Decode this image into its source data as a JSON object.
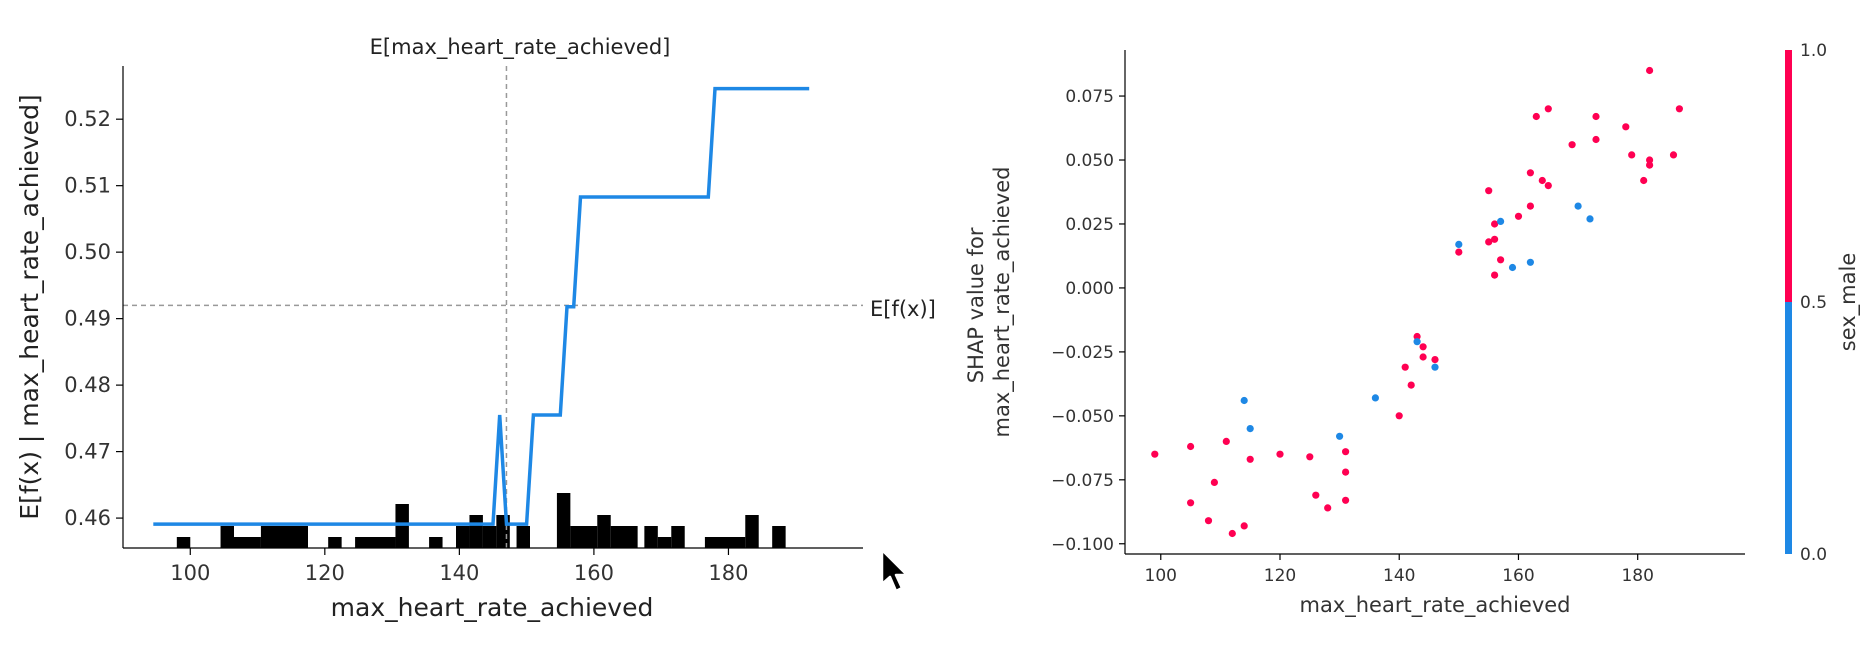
{
  "chart_data": [
    {
      "type": "line",
      "title": "E[max_heart_rate_achieved]",
      "xlabel": "max_heart_rate_achieved",
      "ylabel": "E[f(x) | max_heart_rate_achieved]",
      "xlim": [
        90,
        200
      ],
      "ylim": [
        0.4555,
        0.528
      ],
      "xticks": [
        100,
        120,
        140,
        160,
        180
      ],
      "yticks": [
        0.46,
        0.47,
        0.48,
        0.49,
        0.5,
        0.51,
        0.52
      ],
      "ytick_labels": [
        "0.46",
        "0.47",
        "0.48",
        "0.49",
        "0.50",
        "0.51",
        "0.52"
      ],
      "hline": {
        "y": 0.492,
        "label": "E[f(x)]"
      },
      "vline": {
        "x": 147
      },
      "line_color": "#1e88e5",
      "series": [
        {
          "x": [
            94.5,
            145,
            146,
            147,
            148,
            150,
            151,
            155,
            156,
            157,
            158,
            159,
            177,
            178,
            192
          ],
          "y": [
            0.4591,
            0.4591,
            0.4755,
            0.4591,
            0.4591,
            0.4591,
            0.4755,
            0.4755,
            0.4918,
            0.4918,
            0.5083,
            0.5083,
            0.5083,
            0.5246,
            0.5246
          ]
        }
      ],
      "histogram": {
        "color": "#000000",
        "bins": [
          {
            "x0": 98,
            "x1": 100,
            "count": 1
          },
          {
            "x0": 104.5,
            "x1": 106.5,
            "count": 2
          },
          {
            "x0": 106.5,
            "x1": 110.5,
            "count": 1
          },
          {
            "x0": 110.5,
            "x1": 117.5,
            "count": 2
          },
          {
            "x0": 120.5,
            "x1": 122.5,
            "count": 1
          },
          {
            "x0": 124.5,
            "x1": 130.5,
            "count": 1
          },
          {
            "x0": 130.5,
            "x1": 132.5,
            "count": 4
          },
          {
            "x0": 135.5,
            "x1": 137.5,
            "count": 1
          },
          {
            "x0": 139.5,
            "x1": 141.5,
            "count": 2
          },
          {
            "x0": 141.5,
            "x1": 143.5,
            "count": 3
          },
          {
            "x0": 143.5,
            "x1": 145.5,
            "count": 2
          },
          {
            "x0": 145.5,
            "x1": 147.5,
            "count": 3
          },
          {
            "x0": 148.5,
            "x1": 150.5,
            "count": 2
          },
          {
            "x0": 154.5,
            "x1": 156.5,
            "count": 5
          },
          {
            "x0": 156.5,
            "x1": 160.5,
            "count": 2
          },
          {
            "x0": 160.5,
            "x1": 162.5,
            "count": 3
          },
          {
            "x0": 162.5,
            "x1": 166.5,
            "count": 2
          },
          {
            "x0": 167.5,
            "x1": 169.5,
            "count": 2
          },
          {
            "x0": 169.5,
            "x1": 171.5,
            "count": 1
          },
          {
            "x0": 171.5,
            "x1": 173.5,
            "count": 2
          },
          {
            "x0": 176.5,
            "x1": 182.5,
            "count": 1
          },
          {
            "x0": 182.5,
            "x1": 184.5,
            "count": 3
          },
          {
            "x0": 186.5,
            "x1": 188.5,
            "count": 2
          }
        ]
      }
    },
    {
      "type": "scatter",
      "xlabel": "max_heart_rate_achieved",
      "ylabel": [
        "SHAP value for",
        "max_heart_rate_achieved"
      ],
      "xlim": [
        94,
        198
      ],
      "ylim": [
        -0.104,
        0.093
      ],
      "xticks": [
        100,
        120,
        140,
        160,
        180
      ],
      "yticks": [
        -0.1,
        -0.075,
        -0.05,
        -0.025,
        0.0,
        0.025,
        0.05,
        0.075
      ],
      "ytick_labels": [
        "−0.100",
        "−0.075",
        "−0.050",
        "−0.025",
        "0.000",
        "0.025",
        "0.050",
        "0.075"
      ],
      "colorbar": {
        "label": "sex_male",
        "tick_labels": [
          "0.0",
          "0.5",
          "1.0"
        ],
        "low_color": "#1e88e5",
        "high_color": "#ff0052"
      },
      "points": [
        {
          "x": 99,
          "y": -0.065,
          "c": 1
        },
        {
          "x": 105,
          "y": -0.062,
          "c": 1
        },
        {
          "x": 105,
          "y": -0.084,
          "c": 1
        },
        {
          "x": 108,
          "y": -0.091,
          "c": 1
        },
        {
          "x": 109,
          "y": -0.076,
          "c": 1
        },
        {
          "x": 111,
          "y": -0.06,
          "c": 1
        },
        {
          "x": 112,
          "y": -0.096,
          "c": 1
        },
        {
          "x": 114,
          "y": -0.044,
          "c": 0
        },
        {
          "x": 114,
          "y": -0.093,
          "c": 1
        },
        {
          "x": 115,
          "y": -0.055,
          "c": 0
        },
        {
          "x": 115,
          "y": -0.067,
          "c": 1
        },
        {
          "x": 120,
          "y": -0.065,
          "c": 1
        },
        {
          "x": 125,
          "y": -0.066,
          "c": 1
        },
        {
          "x": 126,
          "y": -0.081,
          "c": 1
        },
        {
          "x": 128,
          "y": -0.086,
          "c": 1
        },
        {
          "x": 130,
          "y": -0.058,
          "c": 0
        },
        {
          "x": 131,
          "y": -0.064,
          "c": 1
        },
        {
          "x": 131,
          "y": -0.072,
          "c": 1
        },
        {
          "x": 131,
          "y": -0.083,
          "c": 1
        },
        {
          "x": 136,
          "y": -0.043,
          "c": 0
        },
        {
          "x": 140,
          "y": -0.05,
          "c": 1
        },
        {
          "x": 141,
          "y": -0.031,
          "c": 1
        },
        {
          "x": 142,
          "y": -0.038,
          "c": 1
        },
        {
          "x": 143,
          "y": -0.019,
          "c": 1
        },
        {
          "x": 143,
          "y": -0.021,
          "c": 0
        },
        {
          "x": 144,
          "y": -0.023,
          "c": 1
        },
        {
          "x": 144,
          "y": -0.027,
          "c": 1
        },
        {
          "x": 146,
          "y": -0.028,
          "c": 1
        },
        {
          "x": 146,
          "y": -0.031,
          "c": 0
        },
        {
          "x": 150,
          "y": 0.014,
          "c": 1
        },
        {
          "x": 150,
          "y": 0.017,
          "c": 0
        },
        {
          "x": 155,
          "y": 0.038,
          "c": 1
        },
        {
          "x": 155,
          "y": 0.018,
          "c": 1
        },
        {
          "x": 156,
          "y": 0.025,
          "c": 1
        },
        {
          "x": 156,
          "y": 0.019,
          "c": 1
        },
        {
          "x": 156,
          "y": 0.005,
          "c": 1
        },
        {
          "x": 157,
          "y": 0.026,
          "c": 0
        },
        {
          "x": 157,
          "y": 0.011,
          "c": 1
        },
        {
          "x": 159,
          "y": 0.008,
          "c": 0
        },
        {
          "x": 160,
          "y": 0.028,
          "c": 1
        },
        {
          "x": 162,
          "y": 0.045,
          "c": 1
        },
        {
          "x": 162,
          "y": 0.032,
          "c": 1
        },
        {
          "x": 162,
          "y": 0.01,
          "c": 0
        },
        {
          "x": 163,
          "y": 0.067,
          "c": 1
        },
        {
          "x": 164,
          "y": 0.042,
          "c": 1
        },
        {
          "x": 165,
          "y": 0.07,
          "c": 1
        },
        {
          "x": 165,
          "y": 0.04,
          "c": 1
        },
        {
          "x": 169,
          "y": 0.056,
          "c": 1
        },
        {
          "x": 170,
          "y": 0.032,
          "c": 0
        },
        {
          "x": 172,
          "y": 0.027,
          "c": 0
        },
        {
          "x": 173,
          "y": 0.067,
          "c": 1
        },
        {
          "x": 173,
          "y": 0.058,
          "c": 1
        },
        {
          "x": 178,
          "y": 0.063,
          "c": 1
        },
        {
          "x": 179,
          "y": 0.052,
          "c": 1
        },
        {
          "x": 181,
          "y": 0.042,
          "c": 1
        },
        {
          "x": 182,
          "y": 0.085,
          "c": 1
        },
        {
          "x": 182,
          "y": 0.05,
          "c": 1
        },
        {
          "x": 182,
          "y": 0.048,
          "c": 1
        },
        {
          "x": 186,
          "y": 0.052,
          "c": 1
        },
        {
          "x": 187,
          "y": 0.07,
          "c": 1
        }
      ]
    }
  ]
}
